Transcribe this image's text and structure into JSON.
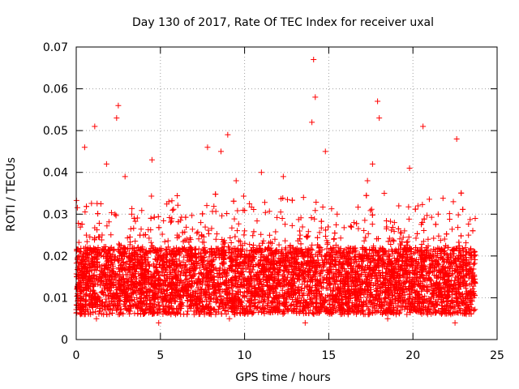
{
  "chart_data": {
    "type": "scatter",
    "title": "Day 130 of 2017, Rate Of TEC Index for receiver uxal",
    "xlabel": "GPS time / hours",
    "ylabel": "ROTI / TECUs",
    "xlim": [
      0,
      25
    ],
    "ylim": [
      0,
      0.07
    ],
    "x_ticks": [
      "0",
      "5",
      "10",
      "15",
      "20",
      "25"
    ],
    "y_ticks": [
      "0",
      "0.01",
      "0.02",
      "0.03",
      "0.04",
      "0.05",
      "0.06",
      "0.07"
    ],
    "x_tick_values": [
      0,
      5,
      10,
      15,
      20,
      25
    ],
    "y_tick_values": [
      0,
      0.01,
      0.02,
      0.03,
      0.04,
      0.05,
      0.06,
      0.07
    ],
    "grid": true,
    "marker": "+",
    "color": "#ff0000",
    "series": [
      {
        "x": [
          0.05,
          0.2,
          0.35,
          0.5,
          0.6,
          0.8,
          1.0,
          1.1,
          1.3,
          1.6,
          1.8,
          2.0,
          2.3,
          2.4,
          2.5,
          2.7,
          2.9,
          3.1,
          3.3,
          3.5,
          3.8,
          4.0,
          4.2,
          4.5,
          4.7,
          5.0,
          5.3,
          5.5,
          5.8,
          6.0,
          6.3,
          6.5,
          6.8,
          7.1,
          7.4,
          7.6,
          7.8,
          8.1,
          8.3,
          8.6,
          8.8,
          9.0,
          9.3,
          9.5,
          9.8,
          10.0,
          10.3,
          10.5,
          10.8,
          11.0,
          11.3,
          11.5,
          11.8,
          12.0,
          12.3,
          12.5,
          12.8,
          13.0,
          13.3,
          13.5,
          13.8,
          14.0,
          14.1,
          14.2,
          14.5,
          14.8,
          15.0,
          15.3,
          15.5,
          15.8,
          16.0,
          16.3,
          16.5,
          16.8,
          17.0,
          17.3,
          17.6,
          17.9,
          18.0,
          18.3,
          18.6,
          18.9,
          19.2,
          19.5,
          19.8,
          20.0,
          20.3,
          20.6,
          20.9,
          21.2,
          21.5,
          21.8,
          22.1,
          22.4,
          22.6,
          22.8,
          23.1,
          23.3,
          23.6,
          23.7,
          0.4,
          0.9,
          1.5,
          2.2,
          3.0,
          3.6,
          4.4,
          5.1,
          5.9,
          6.6,
          7.3,
          8.0,
          8.7,
          9.4,
          10.1,
          10.9,
          11.6,
          12.4,
          13.1,
          13.9,
          14.6,
          15.4,
          16.1,
          16.9,
          17.5,
          18.2,
          19.0,
          19.7,
          20.5,
          21.3,
          22.0,
          22.7,
          23.4,
          1.2,
          4.9,
          9.1,
          13.6,
          18.5,
          22.5
        ],
        "y": [
          0.015,
          0.012,
          0.02,
          0.046,
          0.025,
          0.014,
          0.018,
          0.051,
          0.022,
          0.016,
          0.042,
          0.013,
          0.03,
          0.053,
          0.056,
          0.02,
          0.039,
          0.014,
          0.03,
          0.017,
          0.012,
          0.025,
          0.015,
          0.043,
          0.011,
          0.02,
          0.014,
          0.033,
          0.018,
          0.025,
          0.012,
          0.016,
          0.022,
          0.011,
          0.028,
          0.015,
          0.046,
          0.018,
          0.024,
          0.045,
          0.02,
          0.049,
          0.014,
          0.038,
          0.016,
          0.026,
          0.012,
          0.022,
          0.015,
          0.04,
          0.018,
          0.013,
          0.024,
          0.016,
          0.039,
          0.02,
          0.014,
          0.018,
          0.025,
          0.034,
          0.015,
          0.052,
          0.067,
          0.058,
          0.022,
          0.045,
          0.016,
          0.024,
          0.03,
          0.014,
          0.02,
          0.017,
          0.028,
          0.015,
          0.022,
          0.038,
          0.042,
          0.057,
          0.053,
          0.035,
          0.018,
          0.028,
          0.02,
          0.026,
          0.041,
          0.016,
          0.032,
          0.051,
          0.024,
          0.018,
          0.03,
          0.015,
          0.022,
          0.033,
          0.048,
          0.02,
          0.014,
          0.025,
          0.018,
          0.029,
          0.008,
          0.01,
          0.009,
          0.008,
          0.009,
          0.01,
          0.008,
          0.009,
          0.006,
          0.008,
          0.009,
          0.007,
          0.009,
          0.006,
          0.008,
          0.009,
          0.007,
          0.008,
          0.009,
          0.007,
          0.008,
          0.009,
          0.008,
          0.007,
          0.009,
          0.008,
          0.006,
          0.009,
          0.008,
          0.007,
          0.009,
          0.008,
          0.007,
          0.005,
          0.004,
          0.005,
          0.004,
          0.005,
          0.004
        ]
      }
    ]
  }
}
